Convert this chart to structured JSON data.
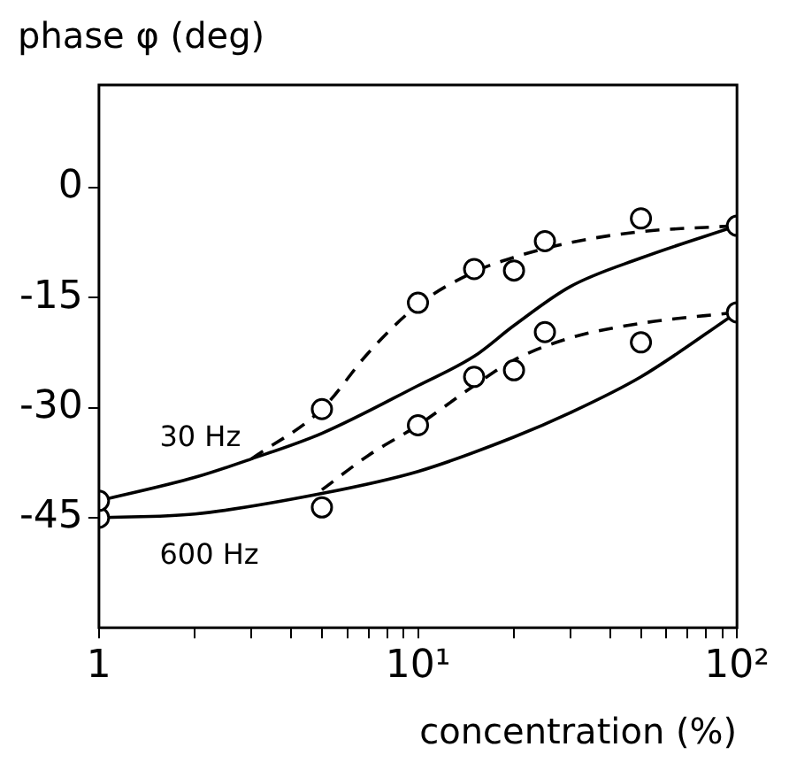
{
  "chart_data": {
    "type": "line",
    "xlabel": "concentration (%)",
    "ylabel": "phase φ (deg)",
    "log": "x",
    "xlim": [
      1,
      100
    ],
    "ylim": [
      -60,
      14
    ],
    "xticks": [
      1,
      {
        "value": 2,
        "label": null
      },
      {
        "value": 3,
        "label": null
      },
      {
        "value": 4,
        "label": null
      },
      {
        "value": 5,
        "label": null
      },
      {
        "value": 6,
        "label": null
      },
      {
        "value": 7,
        "label": null
      },
      {
        "value": 8,
        "label": null
      },
      {
        "value": 9,
        "label": null
      },
      {
        "value": 10,
        "label": "10¹"
      },
      {
        "value": 20,
        "label": null
      },
      {
        "value": 30,
        "label": null
      },
      {
        "value": 40,
        "label": null
      },
      {
        "value": 50,
        "label": null
      },
      {
        "value": 60,
        "label": null
      },
      {
        "value": 70,
        "label": null
      },
      {
        "value": 80,
        "label": null
      },
      {
        "value": 90,
        "label": null
      },
      {
        "value": 100,
        "label": "10²"
      }
    ],
    "yticks": [
      0,
      -15,
      -30,
      -45
    ],
    "grid": false,
    "legend": false,
    "series": [
      {
        "type": "scatter",
        "color": "#000000",
        "marker": "circle",
        "x": [
          1,
          5,
          10,
          15,
          20,
          25,
          50,
          100
        ],
        "values": [
          -42.7,
          -30.2,
          -15.7,
          -11.1,
          -11.3,
          -7.3,
          -4.2,
          -5.2
        ]
      },
      {
        "type": "scatter",
        "color": "#000000",
        "marker": "circle",
        "x": [
          1,
          5,
          10,
          15,
          20,
          25,
          50,
          100
        ],
        "values": [
          -45,
          -43.6,
          -32.4,
          -25.8,
          -24.9,
          -19.7,
          -21.1,
          -17
        ]
      },
      {
        "type": "line",
        "color": "#000000",
        "marker": "none",
        "line_style": "solid",
        "x": [
          1,
          2,
          3,
          5,
          10,
          15,
          20,
          30,
          50,
          100
        ],
        "values": [
          -42.7,
          -39.5,
          -37,
          -33.5,
          -27,
          -23,
          -18.8,
          -13.5,
          -9.6,
          -5.2
        ]
      },
      {
        "type": "line",
        "color": "#000000",
        "marker": "none",
        "line_style": "solid",
        "x": [
          1,
          2,
          5,
          10,
          20,
          30,
          50,
          100
        ],
        "values": [
          -45,
          -44.5,
          -41.7,
          -38.7,
          -34,
          -30.7,
          -25.8,
          -17
        ]
      },
      {
        "type": "line",
        "color": "#000000",
        "marker": "none",
        "line_style": "dashed",
        "x": [
          3,
          5,
          7,
          10,
          15,
          20,
          30,
          50,
          100
        ],
        "values": [
          -37,
          -30.2,
          -22.5,
          -16,
          -11.5,
          -9.5,
          -7.5,
          -6,
          -5.2
        ]
      },
      {
        "type": "line",
        "color": "#000000",
        "marker": "none",
        "line_style": "dashed",
        "x": [
          5,
          7,
          10,
          15,
          20,
          30,
          50,
          100
        ],
        "values": [
          -41.2,
          -36.5,
          -32.4,
          -27,
          -23.5,
          -20.5,
          -18.5,
          -17
        ]
      }
    ],
    "annotations": [
      "30 Hz",
      "600 Hz"
    ]
  }
}
